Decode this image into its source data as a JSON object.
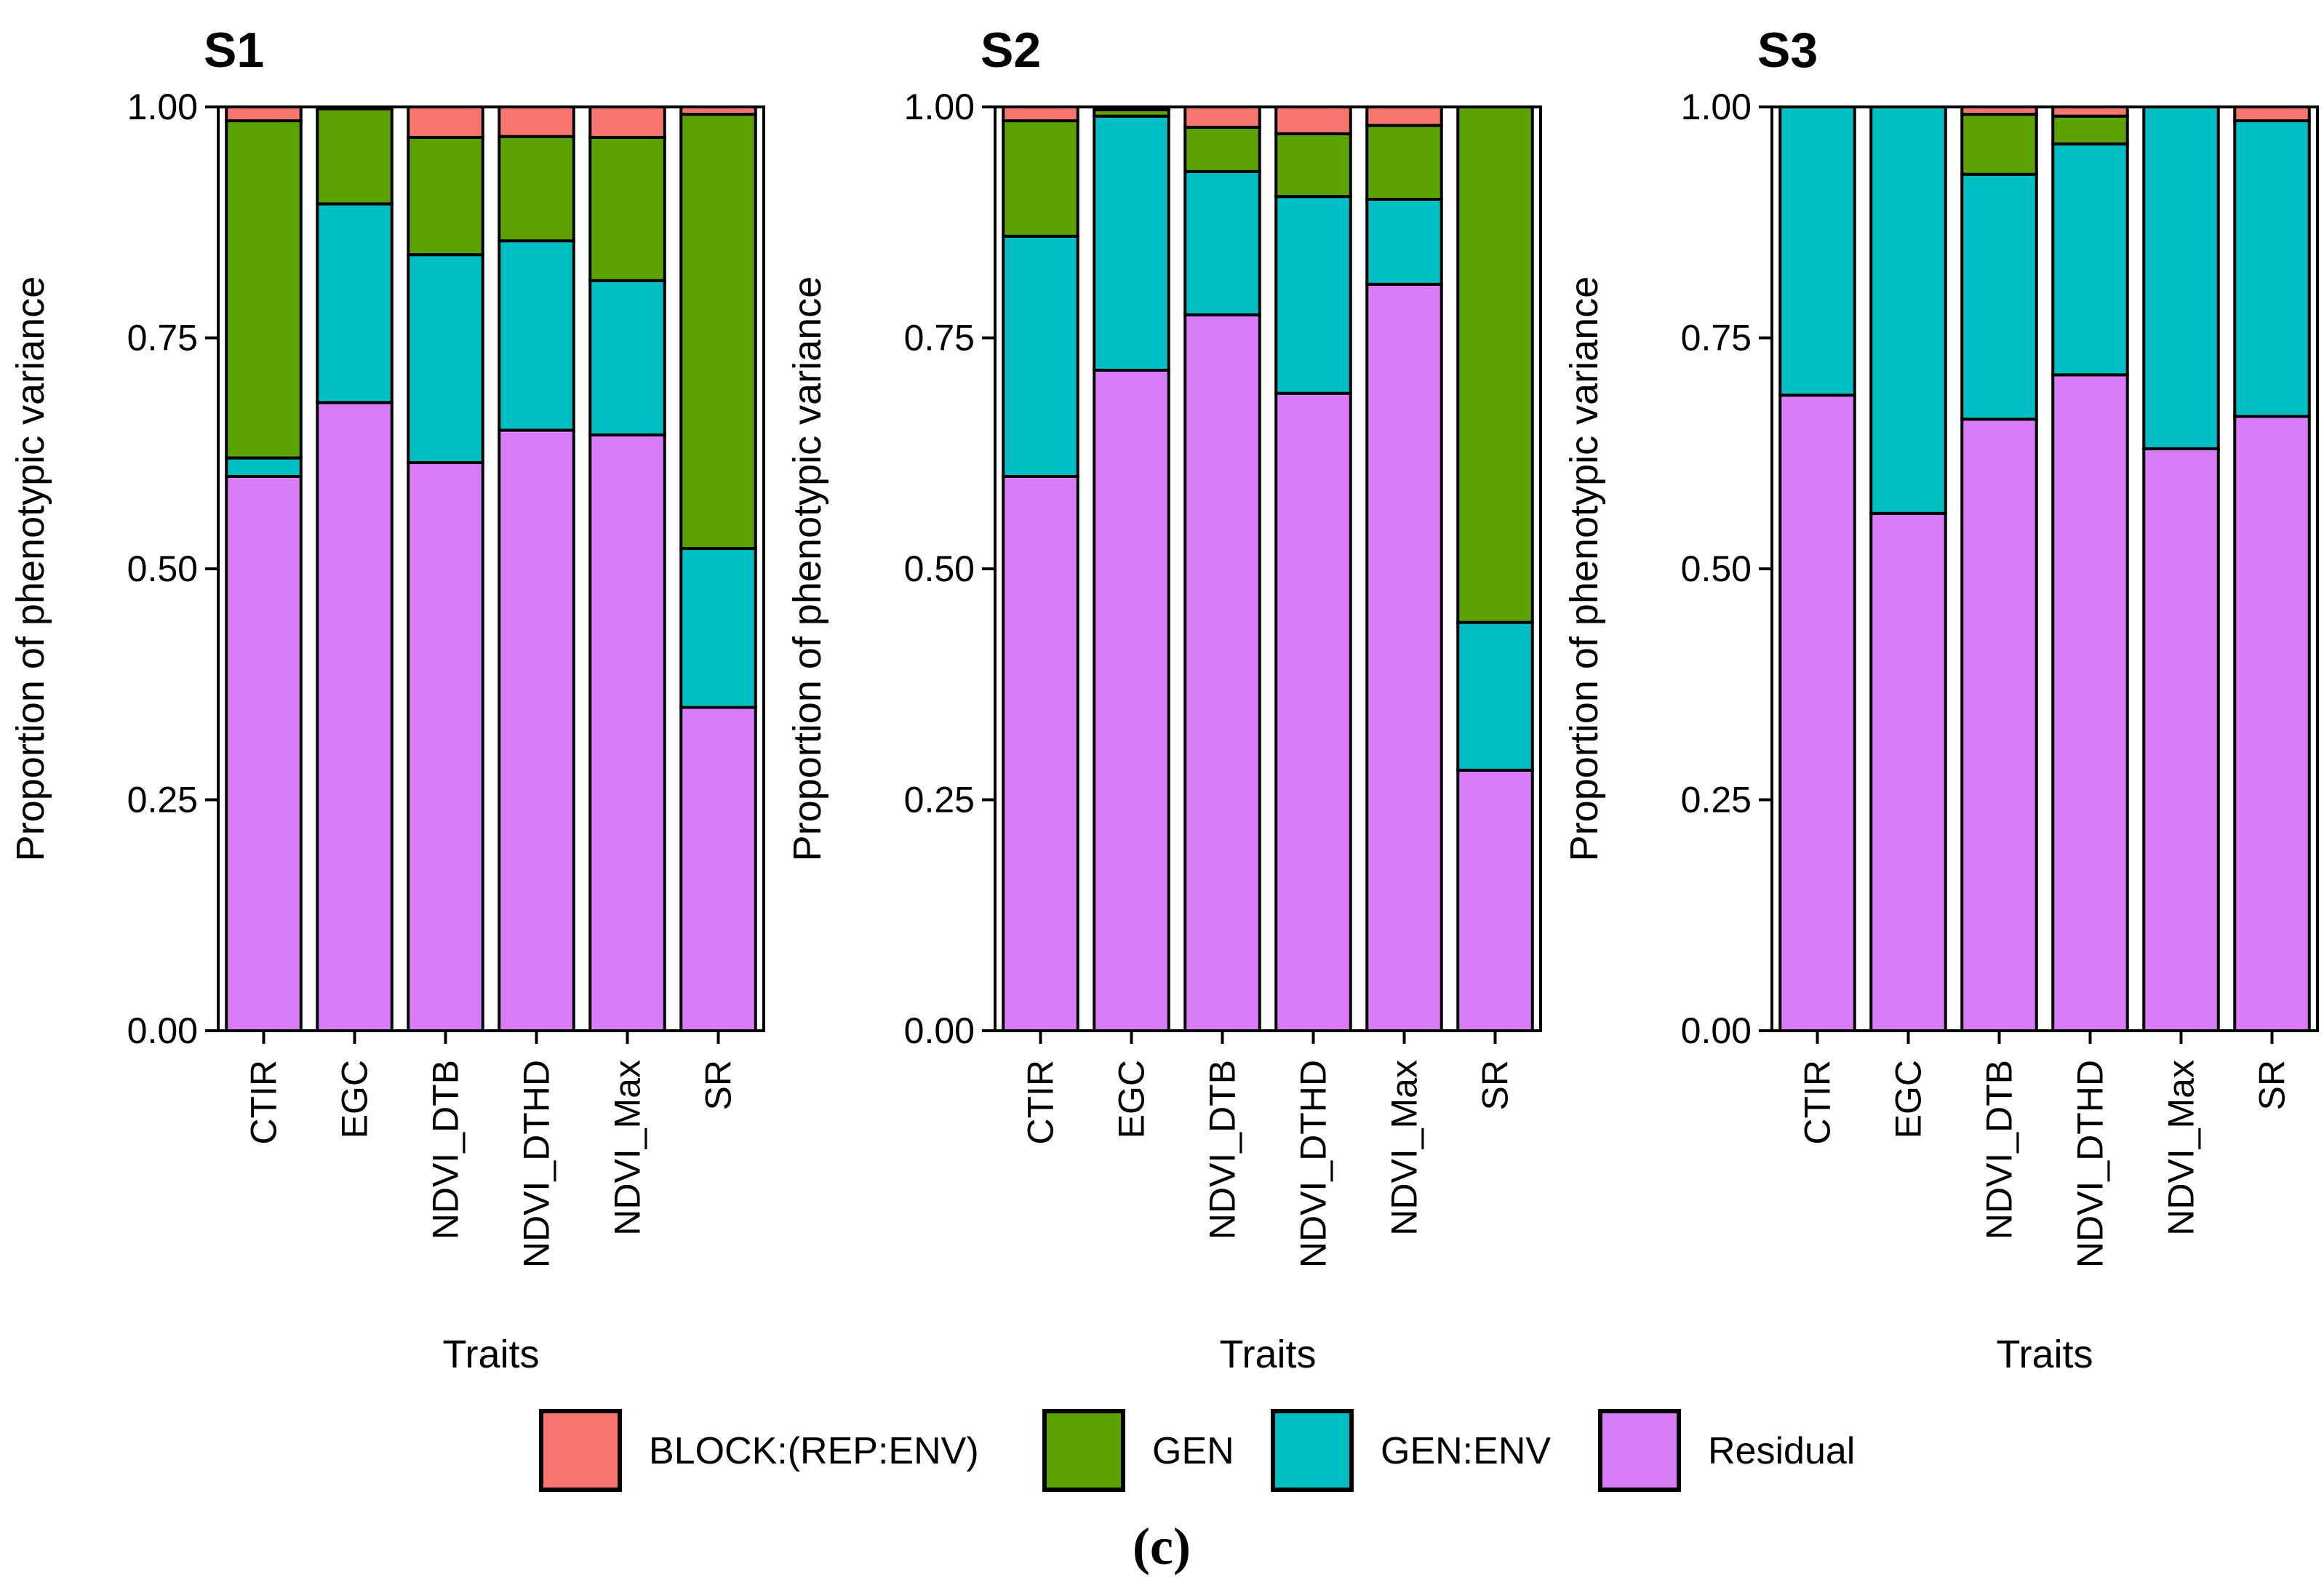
{
  "caption": "(c)",
  "chart_data": {
    "type": "bar",
    "stacked": true,
    "ylabel": "Proportion of phenotypic variance",
    "xlabel": "Traits",
    "ylim": [
      0,
      1
    ],
    "yticks": [
      "0.00",
      "0.25",
      "0.50",
      "0.75",
      "1.00"
    ],
    "categories": [
      "CTIR",
      "EGC",
      "NDVI_DTB",
      "NDVI_DTHD",
      "NDVI_Max",
      "SR"
    ],
    "series_order": [
      "Residual",
      "GEN:ENV",
      "GEN",
      "BLOCK:(REP:ENV)"
    ],
    "colors": {
      "BLOCK:(REP:ENV)": "#F8766D",
      "GEN": "#5BA300",
      "GEN:ENV": "#00BFC4",
      "Residual": "#DA7CF8"
    },
    "legend": {
      "position": "bottom",
      "entries": [
        "BLOCK:(REP:ENV)",
        "GEN",
        "GEN:ENV",
        "Residual"
      ]
    },
    "panels": [
      {
        "title": "S1",
        "series": [
          {
            "name": "Residual",
            "values": [
              0.6,
              0.68,
              0.615,
              0.65,
              0.645,
              0.35
            ]
          },
          {
            "name": "GEN:ENV",
            "values": [
              0.02,
              0.215,
              0.225,
              0.205,
              0.167,
              0.172
            ]
          },
          {
            "name": "GEN",
            "values": [
              0.365,
              0.103,
              0.127,
              0.113,
              0.155,
              0.47
            ]
          },
          {
            "name": "BLOCK:(REP:ENV)",
            "values": [
              0.015,
              0.002,
              0.033,
              0.032,
              0.033,
              0.008
            ]
          }
        ]
      },
      {
        "title": "S2",
        "series": [
          {
            "name": "Residual",
            "values": [
              0.6,
              0.715,
              0.775,
              0.69,
              0.808,
              0.282
            ]
          },
          {
            "name": "GEN:ENV",
            "values": [
              0.26,
              0.275,
              0.155,
              0.213,
              0.092,
              0.16
            ]
          },
          {
            "name": "GEN",
            "values": [
              0.125,
              0.007,
              0.048,
              0.068,
              0.08,
              0.558
            ]
          },
          {
            "name": "BLOCK:(REP:ENV)",
            "values": [
              0.015,
              0.003,
              0.022,
              0.029,
              0.02,
              0.0
            ]
          }
        ]
      },
      {
        "title": "S3",
        "series": [
          {
            "name": "Residual",
            "values": [
              0.688,
              0.56,
              0.662,
              0.71,
              0.63,
              0.665
            ]
          },
          {
            "name": "GEN:ENV",
            "values": [
              0.312,
              0.44,
              0.265,
              0.25,
              0.37,
              0.32
            ]
          },
          {
            "name": "GEN",
            "values": [
              0.0,
              0.0,
              0.065,
              0.03,
              0.0,
              0.0
            ]
          },
          {
            "name": "BLOCK:(REP:ENV)",
            "values": [
              0.0,
              0.0,
              0.008,
              0.01,
              0.0,
              0.015
            ]
          }
        ]
      }
    ]
  }
}
